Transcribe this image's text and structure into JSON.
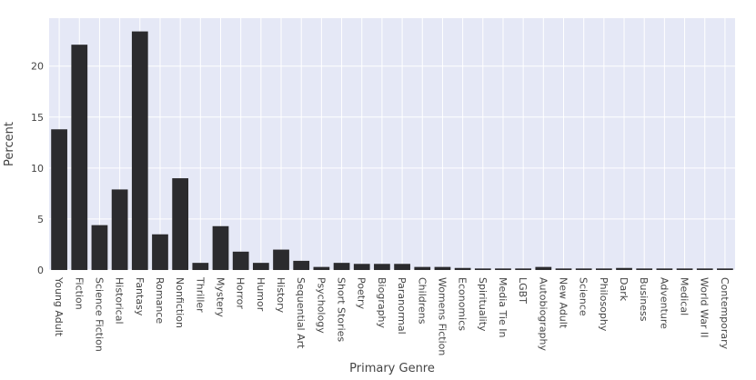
{
  "chart_data": {
    "type": "bar",
    "xlabel": "Primary Genre",
    "ylabel": "Percent",
    "ylim": [
      0,
      24.7
    ],
    "yticks": [
      0,
      5,
      10,
      15,
      20
    ],
    "grid": true,
    "bar_color": "#2b2b2e",
    "plot_bg": "#e5e8f6",
    "categories": [
      "Young Adult",
      "Fiction",
      "Science Fiction",
      "Historical",
      "Fantasy",
      "Romance",
      "Nonfiction",
      "Thriller",
      "Mystery",
      "Horror",
      "Humor",
      "History",
      "Sequential Art",
      "Psychology",
      "Short Stories",
      "Poetry",
      "Biography",
      "Paranormal",
      "Childrens",
      "Womens Fiction",
      "Economics",
      "Spirituality",
      "Media Tie In",
      "LGBT",
      "Autobiography",
      "New Adult",
      "Science",
      "Philosophy",
      "Dark",
      "Business",
      "Adventure",
      "Medical",
      "World War II",
      "Contemporary"
    ],
    "values": [
      13.8,
      22.1,
      4.4,
      7.9,
      23.4,
      3.5,
      9.0,
      0.7,
      4.3,
      1.8,
      0.7,
      2.0,
      0.9,
      0.3,
      0.7,
      0.6,
      0.6,
      0.6,
      0.3,
      0.3,
      0.2,
      0.15,
      0.15,
      0.15,
      0.3,
      0.15,
      0.15,
      0.15,
      0.2,
      0.15,
      0.15,
      0.15,
      0.15,
      0.15
    ]
  }
}
